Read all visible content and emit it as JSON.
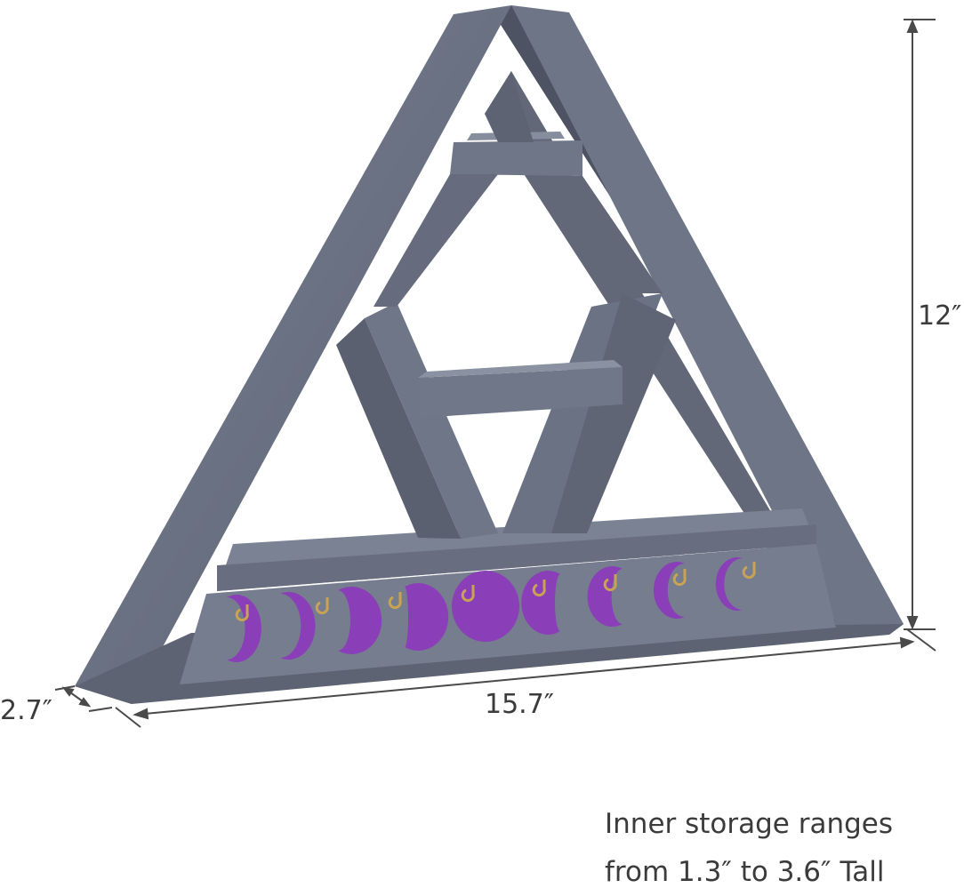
{
  "dimensions": {
    "height": "12″",
    "width": "15.7″",
    "depth": "2.7″"
  },
  "note": {
    "line1": "Inner storage ranges",
    "line2": "from 1.3″ to 3.6″ Tall"
  },
  "colors": {
    "wood": "#6c7384",
    "wood_dark": "#555b6b",
    "wood_light": "#8a91a1",
    "moon": "#8a3fb8",
    "hook": "#c9a352",
    "dimension_line": "#4a4a4a"
  }
}
